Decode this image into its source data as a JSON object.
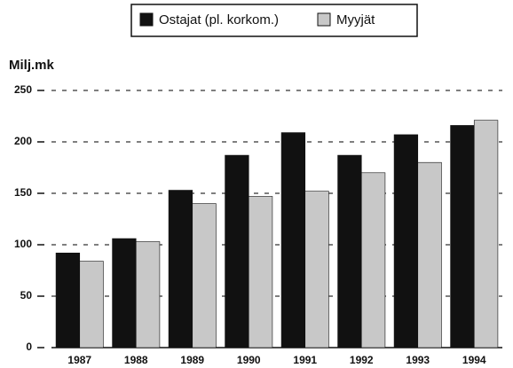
{
  "chart_data": {
    "type": "bar",
    "y_label": "Milj.mk",
    "categories": [
      "1987",
      "1988",
      "1989",
      "1990",
      "1991",
      "1992",
      "1993",
      "1994"
    ],
    "series": [
      {
        "name": "Ostajat (pl. korkom.)",
        "color": "#111111",
        "values": [
          92,
          106,
          153,
          187,
          209,
          187,
          207,
          216
        ]
      },
      {
        "name": "Myyjät",
        "color": "#c8c8c8",
        "values": [
          84,
          103,
          140,
          147,
          152,
          170,
          180,
          221
        ]
      }
    ],
    "ylim": [
      0,
      250
    ],
    "yticks": [
      0,
      50,
      100,
      150,
      200,
      250
    ],
    "grid": true,
    "legend": "top"
  }
}
